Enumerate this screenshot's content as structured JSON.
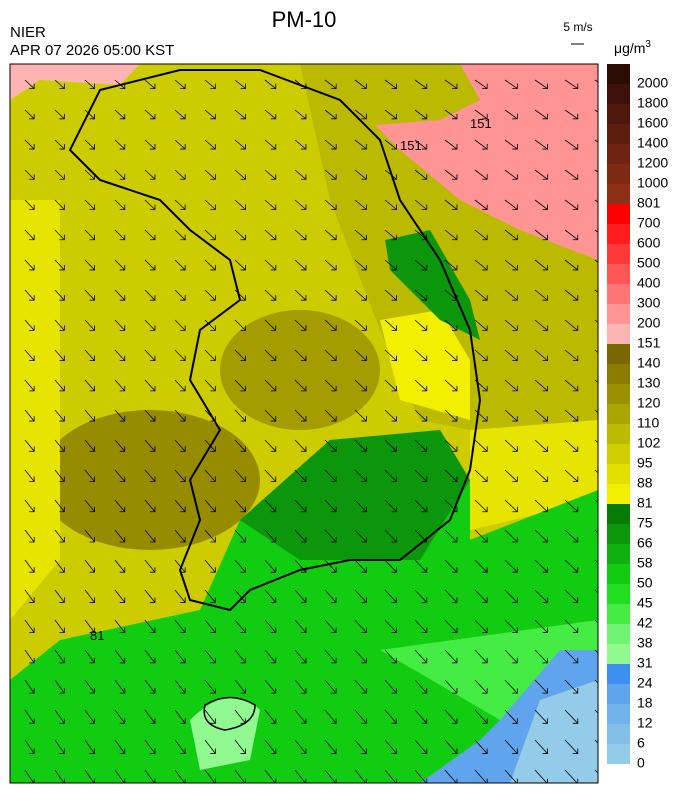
{
  "header": {
    "title": "PM-10",
    "org": "NIER",
    "timestamp": "APR 07 2026 05:00 KST",
    "wind_scale": "5 m/s",
    "unit": "μg/m",
    "unit_sup": "3"
  },
  "contour_labels": [
    "151",
    "151",
    "81"
  ],
  "colorbar": {
    "levels": [
      0,
      6,
      12,
      18,
      24,
      31,
      38,
      42,
      45,
      50,
      58,
      66,
      75,
      81,
      88,
      95,
      102,
      110,
      120,
      130,
      140,
      151,
      200,
      300,
      400,
      500,
      600,
      700,
      801,
      1000,
      1200,
      1400,
      1600,
      1800,
      2000
    ],
    "colors": [
      "#94cbe8",
      "#84bfe8",
      "#72b2ea",
      "#5fa4ec",
      "#3d8ff0",
      "#90fa90",
      "#72f272",
      "#44ec44",
      "#22de22",
      "#12cc12",
      "#10b010",
      "#0c960c",
      "#087a08",
      "#f2f000",
      "#e2e000",
      "#cece00",
      "#bcba00",
      "#aaa600",
      "#9a9000",
      "#8a7c00",
      "#7a6600",
      "#ffb4b4",
      "#ff9494",
      "#ff7474",
      "#ff5656",
      "#ff3838",
      "#ff1c1c",
      "#ff0000",
      "#8e3016",
      "#7e2a12",
      "#6e2410",
      "#5e1e0e",
      "#4e180c",
      "#3e120a",
      "#2e0c06"
    ]
  }
}
